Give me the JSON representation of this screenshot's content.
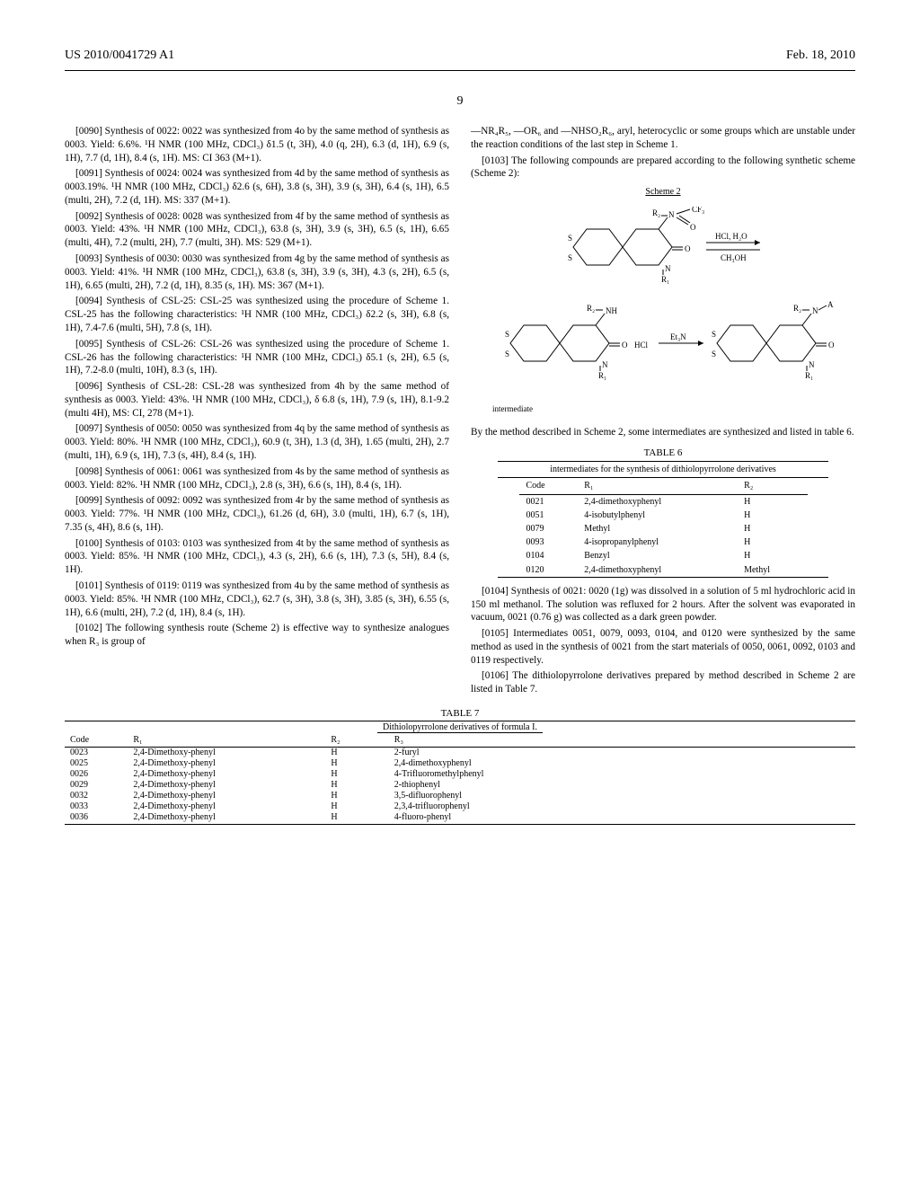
{
  "header": {
    "pubnum": "US 2010/0041729 A1",
    "date": "Feb. 18, 2010"
  },
  "page_number": "9",
  "left_paras": [
    "[0090]    Synthesis of 0022: 0022 was synthesized from 4o by the same method of synthesis as 0003. Yield: 6.6%. ¹H NMR (100 MHz, CDCl₃) δ1.5 (t, 3H), 4.0 (q, 2H), 6.3 (d, 1H), 6.9 (s, 1H), 7.7 (d, 1H), 8.4 (s, 1H). MS: CI 363 (M+1).",
    "[0091]    Synthesis of 0024: 0024 was synthesized from 4d by the same method of synthesis as 0003.19%. ¹H NMR (100 MHz, CDCl₃) δ2.6 (s, 6H), 3.8 (s, 3H), 3.9 (s, 3H), 6.4 (s, 1H), 6.5 (multi, 2H), 7.2 (d, 1H). MS: 337 (M+1).",
    "[0092]    Synthesis of 0028: 0028 was synthesized from 4f by the same method of synthesis as 0003. Yield: 43%. ¹H NMR (100 MHz, CDCl₃), 63.8 (s, 3H), 3.9 (s, 3H), 6.5 (s, 1H), 6.65 (multi, 4H), 7.2 (multi, 2H), 7.7 (multi, 3H). MS: 529 (M+1).",
    "[0093]    Synthesis of 0030: 0030 was synthesized from 4g by the same method of synthesis as 0003. Yield: 41%. ¹H NMR (100 MHz, CDCl₃), 63.8 (s, 3H), 3.9 (s, 3H), 4.3 (s, 2H), 6.5 (s, 1H), 6.65 (multi, 2H), 7.2 (d, 1H), 8.35 (s, 1H). MS: 367 (M+1).",
    "[0094]    Synthesis of CSL-25: CSL-25 was synthesized using the procedure of Scheme 1. CSL-25 has the following characteristics: ¹H NMR (100 MHz, CDCl₃) δ2.2 (s, 3H), 6.8 (s, 1H), 7.4-7.6 (multi, 5H), 7.8 (s, 1H).",
    "[0095]    Synthesis of CSL-26: CSL-26 was synthesized using the procedure of Scheme 1. CSL-26 has the following characteristics: ¹H NMR (100 MHz, CDCl₃) δ5.1 (s, 2H), 6.5 (s, 1H), 7.2-8.0 (multi, 10H), 8.3 (s, 1H).",
    "[0096]    Synthesis of CSL-28: CSL-28 was synthesized from 4h by the same method of synthesis as 0003. Yield: 43%. ¹H NMR (100 MHz, CDCl₃), δ 6.8 (s, 1H), 7.9 (s, 1H), 8.1-9.2 (multi 4H), MS: CI, 278 (M+1).",
    "[0097]    Synthesis of 0050: 0050 was synthesized from 4q by the same method of synthesis as 0003. Yield: 80%. ¹H NMR (100 MHz, CDCl₃), 60.9 (t, 3H), 1.3 (d, 3H), 1.65 (multi, 2H), 2.7 (multi, 1H), 6.9 (s, 1H), 7.3 (s, 4H), 8.4 (s, 1H).",
    "[0098]    Synthesis of 0061: 0061 was synthesized from 4s by the same method of synthesis as 0003. Yield: 82%. ¹H NMR (100 MHz, CDCl₃), 2.8 (s, 3H), 6.6 (s, 1H), 8.4 (s, 1H).",
    "[0099]    Synthesis of 0092: 0092 was synthesized from 4r by the same method of synthesis as 0003. Yield: 77%. ¹H NMR (100 MHz, CDCl₃), 61.26 (d, 6H), 3.0 (multi, 1H), 6.7 (s, 1H), 7.35 (s, 4H), 8.6 (s, 1H).",
    "[0100]    Synthesis of 0103: 0103 was synthesized from 4t by the same method of synthesis as 0003. Yield: 85%. ¹H NMR (100 MHz, CDCl₃), 4.3 (s, 2H), 6.6 (s, 1H), 7.3 (s, 5H), 8.4 (s, 1H).",
    "[0101]    Synthesis of 0119: 0119 was synthesized from 4u by the same method of synthesis as 0003. Yield: 85%. ¹H NMR (100 MHz, CDCl₃), 62.7 (s, 3H), 3.8 (s, 3H), 3.85 (s, 3H), 6.55 (s, 1H), 6.6 (multi, 2H), 7.2 (d, 1H), 8.4 (s, 1H).",
    "[0102]    The following synthesis route (Scheme 2) is effective way to synthesize analogues when R₃ is group of"
  ],
  "right_intro": "—NR₄R₅, —OR₆ and —NHSO₂R₆, aryl, heterocyclic or some groups which are unstable under the reaction conditions of the last step in Scheme 1.",
  "right_para103": "[0103]    The following compounds are prepared according to the following synthetic scheme (Scheme 2):",
  "scheme2_label": "Scheme 2",
  "scheme_reagents": {
    "step1a": "HCl, H₂O",
    "step1b": "CH₃OH",
    "step2a": "HCl",
    "step2b": "Et₃N"
  },
  "intermediate_label": "intermediate",
  "right_textA": "By the method described in Scheme 2, some intermediates are synthesized and listed in table 6.",
  "table6": {
    "caption": "TABLE 6",
    "subtitle": "intermediates for the synthesis of dithiolopyrrolone derivatives",
    "headers": [
      "Code",
      "R₁",
      "R₂"
    ],
    "rows": [
      [
        "0021",
        "2,4-dimethoxyphenyl",
        "H"
      ],
      [
        "0051",
        "4-isobutylphenyl",
        "H"
      ],
      [
        "0079",
        "Methyl",
        "H"
      ],
      [
        "0093",
        "4-isopropanylphenyl",
        "H"
      ],
      [
        "0104",
        "Benzyl",
        "H"
      ],
      [
        "0120",
        "2,4-dimethoxyphenyl",
        "Methyl"
      ]
    ]
  },
  "right_para104": "[0104]    Synthesis of 0021: 0020 (1g) was dissolved in a solution of 5 ml hydrochloric acid in 150 ml methanol. The solution was refluxed for 2 hours. After the solvent was evaporated in vacuum, 0021 (0.76 g) was collected as a dark green powder.",
  "right_para105": "[0105]    Intermediates 0051, 0079, 0093, 0104, and 0120 were synthesized by the same method as used in the synthesis of 0021 from the start materials of 0050, 0061, 0092, 0103 and 0119 respectively.",
  "right_para106": "[0106]    The dithiolopyrrolone derivatives prepared by method described in Scheme 2 are listed in Table 7.",
  "table7": {
    "caption": "TABLE 7",
    "subtitle": "Dithiolopyrrolone derivatives of formula I.",
    "headers": [
      "Code",
      "R₁",
      "R₂",
      "R₃"
    ],
    "rows": [
      [
        "0023",
        "2,4-Dimethoxy-phenyl",
        "H",
        "2-furyl"
      ],
      [
        "0025",
        "2,4-Dimethoxy-phenyl",
        "H",
        "2,4-dimethoxyphenyl"
      ],
      [
        "0026",
        "2,4-Dimethoxy-phenyl",
        "H",
        "4-Trifluoromethylphenyl"
      ],
      [
        "0029",
        "2,4-Dimethoxy-phenyl",
        "H",
        "2-thiophenyl"
      ],
      [
        "0032",
        "2,4-Dimethoxy-phenyl",
        "H",
        "3,5-difluorophenyl"
      ],
      [
        "0033",
        "2,4-Dimethoxy-phenyl",
        "H",
        "2,3,4-trifluorophenyl"
      ],
      [
        "0036",
        "2,4-Dimethoxy-phenyl",
        "H",
        "4-fluoro-phenyl"
      ]
    ]
  },
  "colors": {
    "text": "#000000",
    "bg": "#ffffff",
    "rule": "#000000"
  }
}
